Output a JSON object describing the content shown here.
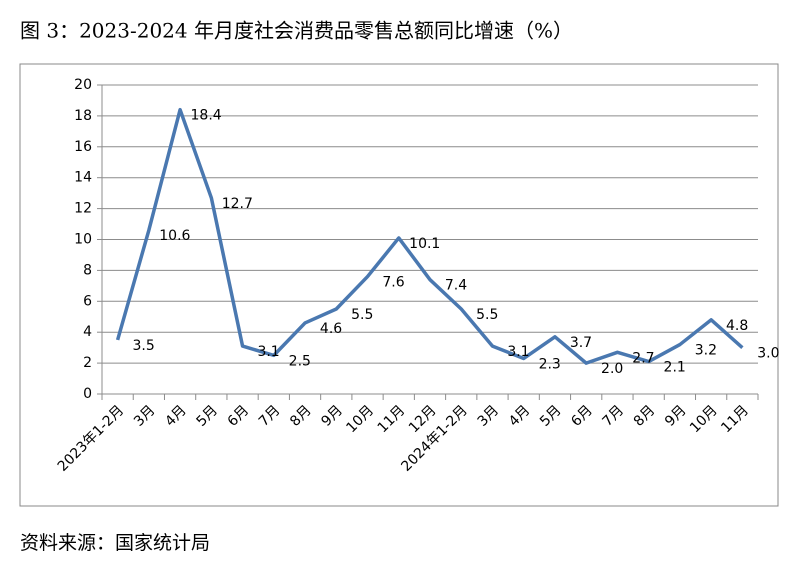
{
  "chart_data": {
    "type": "line",
    "title": "图 3：2023-2024 年月度社会消费品零售总额同比增速（%）",
    "source": "资料来源：国家统计局",
    "categories": [
      "2023年1-2月",
      "3月",
      "4月",
      "5月",
      "6月",
      "7月",
      "8月",
      "9月",
      "10月",
      "11月",
      "12月",
      "2024年1-2月",
      "3月",
      "4月",
      "5月",
      "6月",
      "7月",
      "8月",
      "9月",
      "10月",
      "11月"
    ],
    "series": [
      {
        "name": "社会消费品零售总额同比增速",
        "color": "#4a78b0",
        "values": [
          3.5,
          10.6,
          18.4,
          12.7,
          3.1,
          2.5,
          4.6,
          5.5,
          7.6,
          10.1,
          7.4,
          5.5,
          3.1,
          2.3,
          3.7,
          2.0,
          2.7,
          2.1,
          3.2,
          4.8,
          3.0
        ],
        "value_labels": [
          "3.5",
          "10.6",
          "18.4",
          "12.7",
          "3.1",
          "2.5",
          "4.6",
          "5.5",
          "7.6",
          "10.1",
          "7.4",
          "5.5",
          "3.1",
          "2.3",
          "3.7",
          "2.0",
          "2.7",
          "2.1",
          "3.2",
          "4.8",
          "3.0"
        ]
      }
    ],
    "ylim": [
      0,
      20
    ],
    "yticks": [
      0,
      2,
      4,
      6,
      8,
      10,
      12,
      14,
      16,
      18,
      20
    ],
    "grid": true
  }
}
